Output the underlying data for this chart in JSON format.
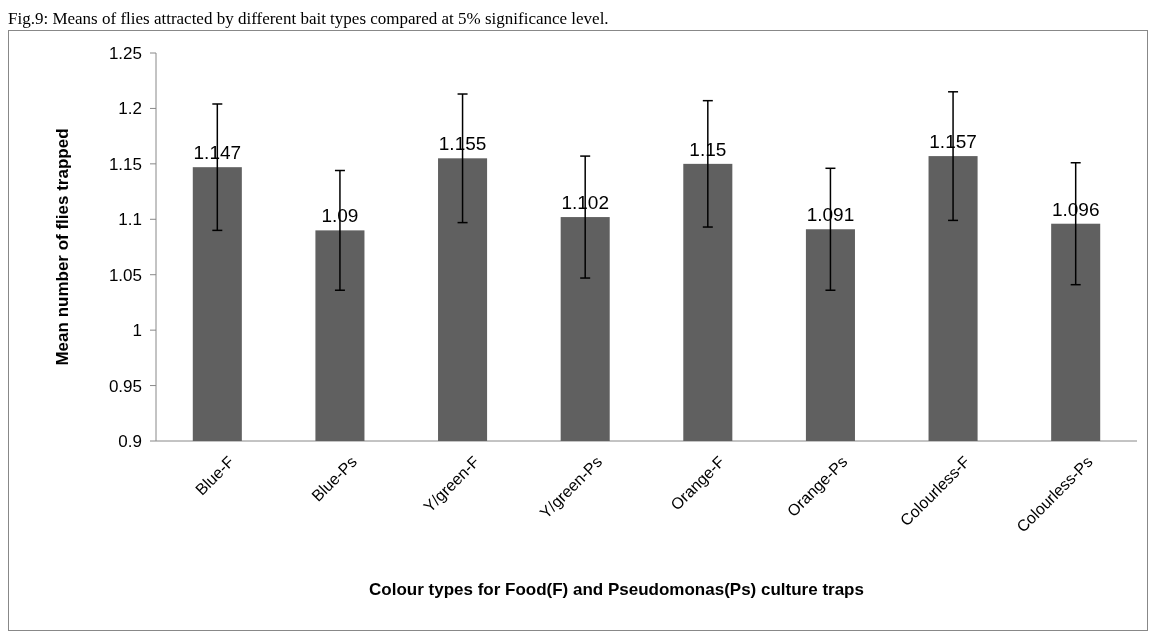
{
  "chart_data": {
    "type": "bar",
    "title": "Fig.9: Means of flies attracted by different bait types compared at 5% significance level.",
    "xlabel": "Colour types for Food(F) and Pseudomonas(Ps) culture traps",
    "ylabel": "Mean number of flies trapped",
    "categories": [
      "Blue-F",
      "Blue-Ps",
      "Y/green-F",
      "Y/green-Ps",
      "Orange-F",
      "Orange-Ps",
      "Colourless-F",
      "Colourless-Ps"
    ],
    "values": [
      1.147,
      1.09,
      1.155,
      1.102,
      1.15,
      1.091,
      1.157,
      1.096
    ],
    "errors": [
      0.057,
      0.054,
      0.058,
      0.055,
      0.057,
      0.055,
      0.058,
      0.055
    ],
    "color": "#606060",
    "data_labels": true,
    "ylim": [
      0.9,
      1.25
    ],
    "yticks": [
      0.9,
      0.95,
      1,
      1.05,
      1.1,
      1.15,
      1.2,
      1.25
    ]
  }
}
